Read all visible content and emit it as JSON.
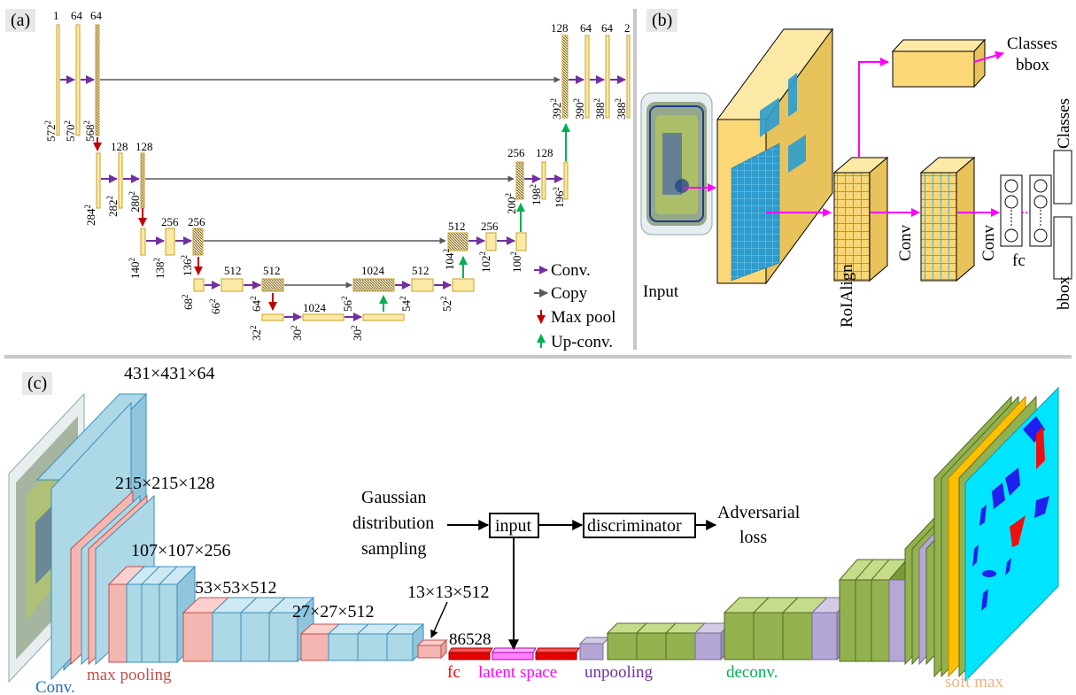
{
  "panels": {
    "a": {
      "tag": "(a)"
    },
    "b": {
      "tag": "(b)"
    },
    "c": {
      "tag": "(c)"
    }
  },
  "unet": {
    "channels_top": [
      "1",
      "64",
      "64",
      "128",
      "64",
      "64",
      "2"
    ],
    "level1": {
      "channels": [
        "128",
        "128"
      ],
      "right": [
        "256",
        "128"
      ]
    },
    "level2": {
      "channels": [
        "256",
        "256"
      ],
      "right": [
        "512",
        "256"
      ]
    },
    "level3": {
      "channels": [
        "512",
        "512"
      ],
      "right": [
        "1024",
        "512"
      ]
    },
    "bottom": {
      "channels": [
        "1024"
      ]
    },
    "sizes": {
      "s572": "572",
      "s570": "570",
      "s568": "568",
      "s284": "284",
      "s282": "282",
      "s280": "280",
      "s140": "140",
      "s138": "138",
      "s136": "136",
      "s68": "68",
      "s66": "66",
      "s64": "64",
      "s32": "32",
      "s30a": "30",
      "s30b": "30",
      "s56": "56",
      "s54": "54",
      "s52": "52",
      "s104": "104",
      "s102": "102",
      "s100": "100",
      "s200": "200",
      "s198": "198",
      "s196": "196",
      "s392": "392",
      "s390": "390",
      "s388a": "388",
      "s388b": "388"
    },
    "legend": {
      "conv": "Conv.",
      "copy": "Copy",
      "maxpool": "Max pool",
      "upconv": "Up-conv.",
      "colors": {
        "conv": "#7030a0",
        "copy": "#595959",
        "maxpool": "#c00000",
        "upconv": "#00b050"
      }
    }
  },
  "maskrcnn": {
    "input": "Input",
    "roialign": "RoIAlign",
    "conv1": "Conv",
    "conv2": "Conv",
    "fc": "fc",
    "classes_top": "Classes",
    "bbox_top": "bbox",
    "classes_right": "Classes",
    "bbox_right": "bbox",
    "colors": {
      "feature": "#fcd778",
      "grid": "#3ab6e6",
      "arrow": "#ff00ff"
    }
  },
  "aae": {
    "dims": {
      "d431": "431×431×64",
      "d215": "215×215×128",
      "d107": "107×107×256",
      "d53": "53×53×512",
      "d27": "27×27×512",
      "d13": "13×13×512",
      "d86528": "86528"
    },
    "gaussian": [
      "Gaussian",
      "distribution",
      "sampling"
    ],
    "input_box": "input",
    "discriminator_box": "discriminator",
    "adversarial": [
      "Adversarial",
      "loss"
    ],
    "labels": {
      "conv": "Conv.",
      "maxpool": "max pooling",
      "fc": "fc",
      "latent": "latent space",
      "unpooling": "unpooling",
      "deconv": "deconv.",
      "softmax": "soft max"
    },
    "colors": {
      "conv": "#add8e6",
      "pool": "#f4b6b0",
      "fc": "#e60000",
      "latent": "#ff80ff",
      "unpool": "#b4a7d6",
      "deconv": "#93b24f",
      "softmax": "#ffc000",
      "mask": "#00e5ff",
      "label_conv": "#1f6fc0",
      "label_pool": "#c0504d",
      "label_fc": "#ff0000",
      "label_latent": "#ff00ff",
      "label_unpool": "#7030a0",
      "label_deconv": "#00b050",
      "label_softmax": "#f4b183"
    }
  }
}
